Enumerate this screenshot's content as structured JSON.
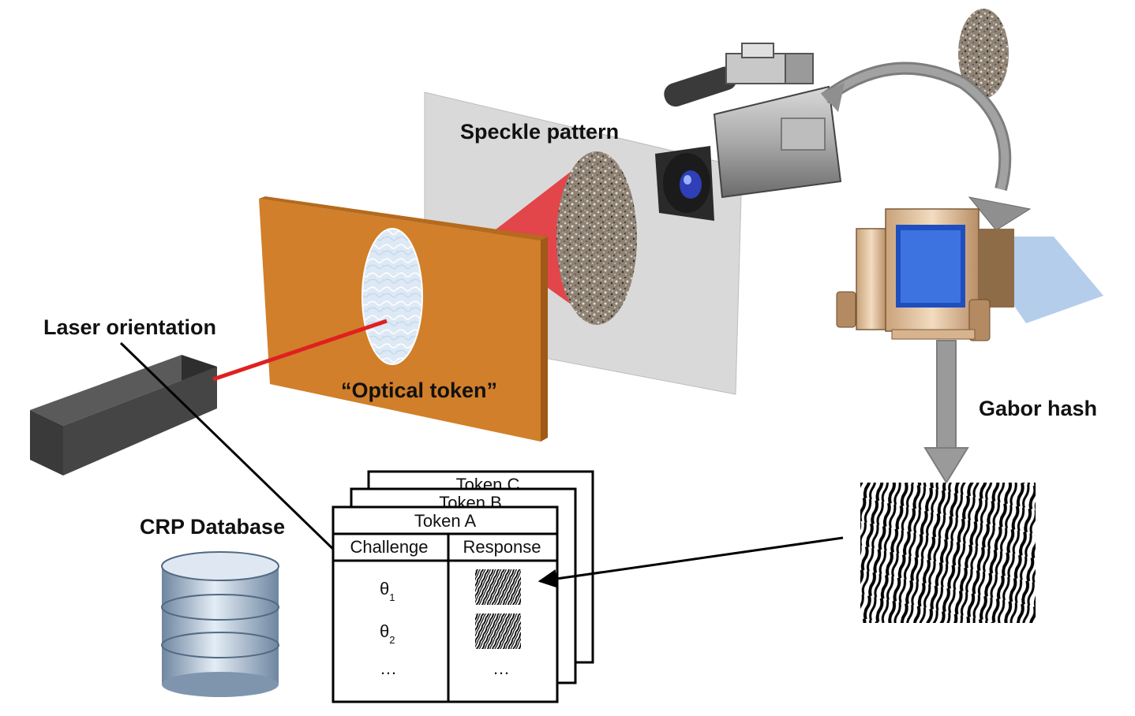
{
  "labels": {
    "speckle_pattern": "Speckle pattern",
    "laser_orientation": "Laser orientation",
    "optical_token": "“Optical token”",
    "gabor_hash": "Gabor hash",
    "crp_database": "CRP Database"
  },
  "tables": {
    "back_titles": [
      "Token C",
      "Token B"
    ],
    "front_title": "Token A",
    "headers": {
      "challenge": "Challenge",
      "response": "Response"
    },
    "rows": [
      {
        "challenge_symbol": "θ",
        "challenge_sub": "1"
      },
      {
        "challenge_symbol": "θ",
        "challenge_sub": "2"
      },
      {
        "challenge_symbol": "…",
        "challenge_sub": "",
        "response_text": "…"
      }
    ]
  },
  "colors": {
    "token_plate": "#d17f2a",
    "laser_beam": "#e02020",
    "screen": "#d9d9d9",
    "cone": "#e2343a",
    "arrow_gray": "#8f8f8f"
  },
  "icons": [
    "laser-source-icon",
    "video-camera-icon",
    "computer-icon",
    "database-icon"
  ]
}
